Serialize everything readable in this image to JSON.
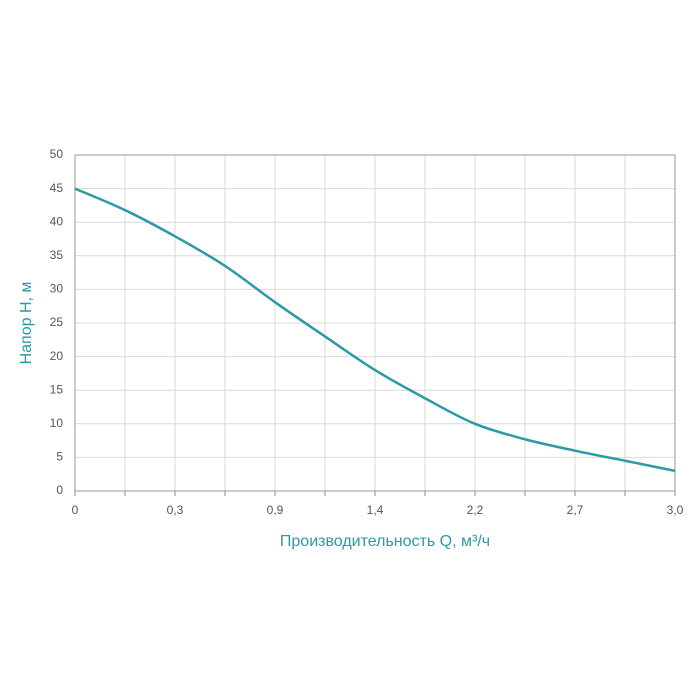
{
  "chart_data": {
    "type": "line",
    "xlabel": "Производительность Q, м³/ч",
    "ylabel": "Напор Н, м",
    "categories": [
      "0",
      null,
      "0,3",
      null,
      "0,9",
      null,
      "1,4",
      null,
      "2,2",
      null,
      "2,7",
      null,
      "3,0"
    ],
    "series": [
      {
        "name": "Напор",
        "color": "#2a9aa5",
        "values": [
          45,
          41.8,
          37.9,
          33.5,
          28.1,
          23,
          18,
          13.8,
          10,
          7.7,
          6,
          4.5,
          3
        ]
      }
    ],
    "ylim": [
      0,
      50
    ],
    "yticks": [
      0,
      5,
      10,
      15,
      20,
      25,
      30,
      35,
      40,
      45,
      50
    ],
    "grid": true
  }
}
